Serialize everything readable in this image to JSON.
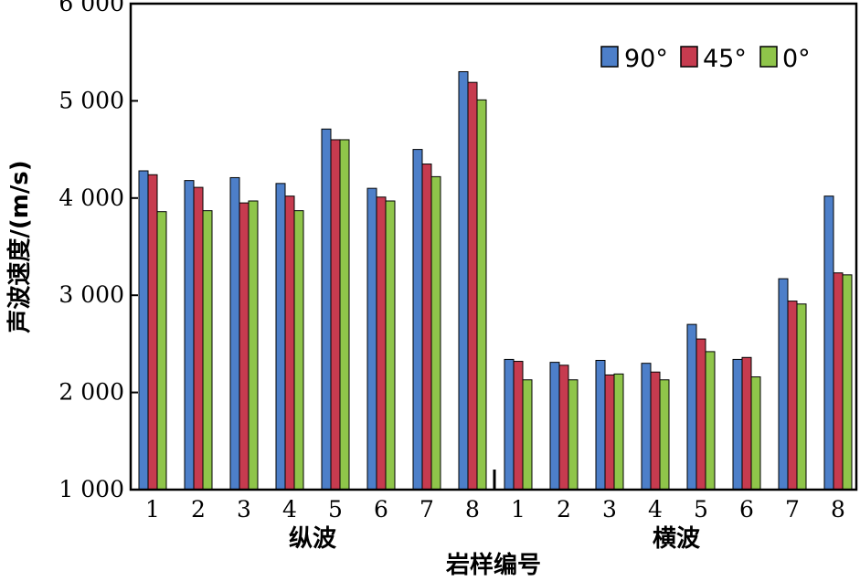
{
  "chart_data": {
    "type": "bar",
    "xlabel": "岩样编号",
    "ylabel": "声波速度/(m/s)",
    "ylim": [
      1000,
      6000
    ],
    "yticks": [
      1000,
      2000,
      3000,
      4000,
      5000,
      6000
    ],
    "ytick_labels": [
      "1 000",
      "2 000",
      "3 000",
      "4 000",
      "5 000",
      "6 000"
    ],
    "grid": false,
    "legend_position": "top-right",
    "groups": [
      {
        "label": "纵波",
        "categories": [
          "1",
          "2",
          "3",
          "4",
          "5",
          "6",
          "7",
          "8"
        ]
      },
      {
        "label": "横波",
        "categories": [
          "1",
          "2",
          "3",
          "4",
          "5",
          "6",
          "7",
          "8"
        ]
      }
    ],
    "series": [
      {
        "name": "90°",
        "color": "#4d7fc9",
        "values": [
          4280,
          4180,
          4210,
          4150,
          4710,
          4100,
          4500,
          5300,
          2340,
          2310,
          2330,
          2300,
          2700,
          2340,
          3170,
          4020
        ]
      },
      {
        "name": "45°",
        "color": "#c63b4f",
        "values": [
          4240,
          4110,
          3950,
          4020,
          4600,
          4010,
          4350,
          5190,
          2320,
          2280,
          2180,
          2210,
          2550,
          2360,
          2940,
          3230
        ]
      },
      {
        "name": "0°",
        "color": "#8fc54a",
        "values": [
          3860,
          3870,
          3970,
          3870,
          4600,
          3970,
          4220,
          5010,
          2130,
          2130,
          2190,
          2130,
          2420,
          2160,
          2910,
          3210
        ]
      }
    ]
  }
}
